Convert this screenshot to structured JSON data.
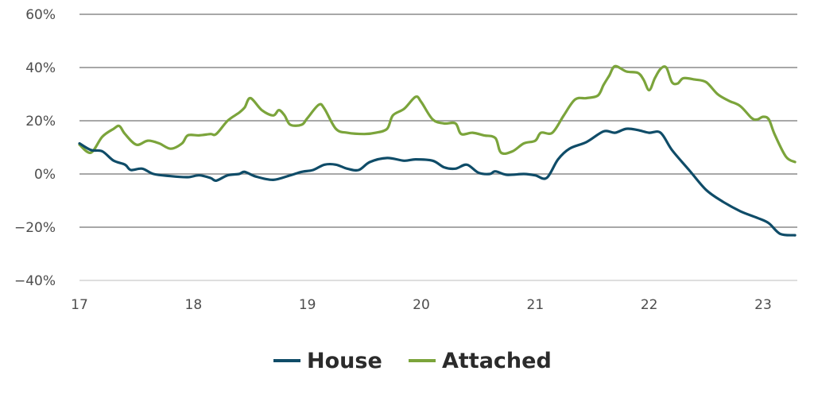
{
  "chart_data": {
    "type": "line",
    "y_format": "percent",
    "ylim": [
      -40,
      60
    ],
    "yticks": [
      60,
      40,
      20,
      0,
      -20,
      -40
    ],
    "ytick_labels": [
      "60%",
      "40%",
      "20%",
      "0%",
      "−20%",
      "−40%"
    ],
    "xlim": [
      17,
      23.3
    ],
    "xticks": [
      17,
      18,
      19,
      20,
      21,
      22,
      23
    ],
    "xtick_labels": [
      "17",
      "18",
      "19",
      "20",
      "21",
      "22",
      "23"
    ],
    "grid": true,
    "legend_position": "bottom-center",
    "series": [
      {
        "name": "House",
        "color": "#0f4c68",
        "points": [
          [
            17.0,
            11.5
          ],
          [
            17.1,
            9.0
          ],
          [
            17.2,
            8.5
          ],
          [
            17.3,
            5.0
          ],
          [
            17.4,
            3.5
          ],
          [
            17.45,
            1.5
          ],
          [
            17.55,
            2.0
          ],
          [
            17.65,
            0.0
          ],
          [
            17.8,
            -0.8
          ],
          [
            17.95,
            -1.2
          ],
          [
            18.05,
            -0.5
          ],
          [
            18.15,
            -1.5
          ],
          [
            18.2,
            -2.5
          ],
          [
            18.3,
            -0.5
          ],
          [
            18.4,
            0.0
          ],
          [
            18.45,
            0.8
          ],
          [
            18.55,
            -1.0
          ],
          [
            18.7,
            -2.2
          ],
          [
            18.85,
            -0.5
          ],
          [
            18.95,
            0.8
          ],
          [
            19.05,
            1.5
          ],
          [
            19.15,
            3.5
          ],
          [
            19.25,
            3.5
          ],
          [
            19.35,
            2.0
          ],
          [
            19.45,
            1.5
          ],
          [
            19.55,
            4.5
          ],
          [
            19.7,
            6.0
          ],
          [
            19.85,
            5.0
          ],
          [
            19.95,
            5.5
          ],
          [
            20.1,
            5.0
          ],
          [
            20.2,
            2.5
          ],
          [
            20.3,
            2.0
          ],
          [
            20.4,
            3.5
          ],
          [
            20.5,
            0.5
          ],
          [
            20.6,
            0.0
          ],
          [
            20.65,
            1.0
          ],
          [
            20.75,
            -0.3
          ],
          [
            20.9,
            0.0
          ],
          [
            21.0,
            -0.5
          ],
          [
            21.1,
            -1.5
          ],
          [
            21.2,
            5.5
          ],
          [
            21.3,
            9.5
          ],
          [
            21.45,
            12.0
          ],
          [
            21.6,
            16.0
          ],
          [
            21.7,
            15.5
          ],
          [
            21.8,
            17.0
          ],
          [
            21.9,
            16.5
          ],
          [
            22.0,
            15.5
          ],
          [
            22.1,
            15.5
          ],
          [
            22.2,
            9.0
          ],
          [
            22.35,
            1.5
          ],
          [
            22.5,
            -6.0
          ],
          [
            22.65,
            -10.5
          ],
          [
            22.8,
            -14.0
          ],
          [
            22.95,
            -16.5
          ],
          [
            23.05,
            -18.5
          ],
          [
            23.15,
            -22.5
          ],
          [
            23.28,
            -23.0
          ]
        ]
      },
      {
        "name": "Attached",
        "color": "#7ba43b",
        "points": [
          [
            17.0,
            11.0
          ],
          [
            17.1,
            8.0
          ],
          [
            17.2,
            14.0
          ],
          [
            17.3,
            17.0
          ],
          [
            17.35,
            18.0
          ],
          [
            17.4,
            15.0
          ],
          [
            17.5,
            11.0
          ],
          [
            17.6,
            12.5
          ],
          [
            17.7,
            11.5
          ],
          [
            17.8,
            9.5
          ],
          [
            17.9,
            11.5
          ],
          [
            17.95,
            14.5
          ],
          [
            18.05,
            14.5
          ],
          [
            18.15,
            15.0
          ],
          [
            18.2,
            15.0
          ],
          [
            18.3,
            20.0
          ],
          [
            18.4,
            23.0
          ],
          [
            18.45,
            25.0
          ],
          [
            18.5,
            28.5
          ],
          [
            18.6,
            24.0
          ],
          [
            18.7,
            22.0
          ],
          [
            18.75,
            24.0
          ],
          [
            18.8,
            22.0
          ],
          [
            18.85,
            18.5
          ],
          [
            18.95,
            18.5
          ],
          [
            19.0,
            21.0
          ],
          [
            19.1,
            26.0
          ],
          [
            19.15,
            24.5
          ],
          [
            19.25,
            17.0
          ],
          [
            19.35,
            15.5
          ],
          [
            19.5,
            15.0
          ],
          [
            19.6,
            15.5
          ],
          [
            19.7,
            17.0
          ],
          [
            19.75,
            22.0
          ],
          [
            19.85,
            24.5
          ],
          [
            19.95,
            29.0
          ],
          [
            20.0,
            27.0
          ],
          [
            20.1,
            20.5
          ],
          [
            20.2,
            19.0
          ],
          [
            20.3,
            19.0
          ],
          [
            20.35,
            15.0
          ],
          [
            20.45,
            15.5
          ],
          [
            20.55,
            14.5
          ],
          [
            20.65,
            13.5
          ],
          [
            20.7,
            8.0
          ],
          [
            20.8,
            8.5
          ],
          [
            20.9,
            11.5
          ],
          [
            21.0,
            12.5
          ],
          [
            21.05,
            15.5
          ],
          [
            21.15,
            15.5
          ],
          [
            21.25,
            22.0
          ],
          [
            21.35,
            28.0
          ],
          [
            21.45,
            28.5
          ],
          [
            21.55,
            29.5
          ],
          [
            21.6,
            33.5
          ],
          [
            21.65,
            37.0
          ],
          [
            21.7,
            40.5
          ],
          [
            21.8,
            38.5
          ],
          [
            21.9,
            38.0
          ],
          [
            21.95,
            35.5
          ],
          [
            22.0,
            31.5
          ],
          [
            22.05,
            36.0
          ],
          [
            22.1,
            39.5
          ],
          [
            22.15,
            40.0
          ],
          [
            22.2,
            34.5
          ],
          [
            22.25,
            34.0
          ],
          [
            22.3,
            36.0
          ],
          [
            22.4,
            35.5
          ],
          [
            22.5,
            34.5
          ],
          [
            22.6,
            30.0
          ],
          [
            22.7,
            27.5
          ],
          [
            22.8,
            25.5
          ],
          [
            22.9,
            21.0
          ],
          [
            22.95,
            20.5
          ],
          [
            23.0,
            21.5
          ],
          [
            23.05,
            20.5
          ],
          [
            23.1,
            15.0
          ],
          [
            23.2,
            6.5
          ],
          [
            23.28,
            4.5
          ]
        ]
      }
    ]
  }
}
